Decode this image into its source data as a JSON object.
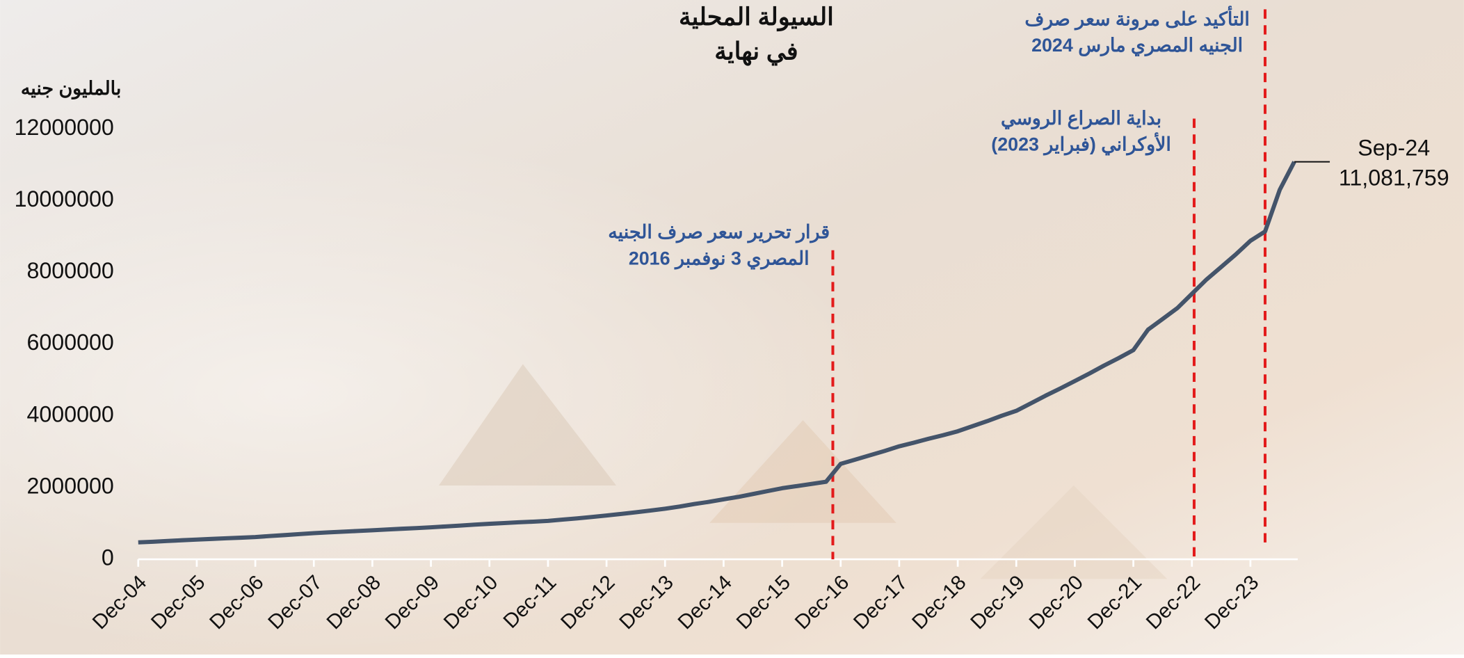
{
  "chart_data": {
    "type": "line",
    "title": [
      "السيولة المحلية",
      "في نهاية"
    ],
    "y_label": "بالمليون جنيه",
    "categories": [
      "Dec-04",
      null,
      null,
      null,
      "Dec-05",
      null,
      null,
      null,
      "Dec-06",
      null,
      null,
      null,
      "Dec-07",
      null,
      null,
      null,
      "Dec-08",
      null,
      null,
      null,
      "Dec-09",
      null,
      null,
      null,
      "Dec-10",
      null,
      null,
      null,
      "Dec-11",
      null,
      null,
      null,
      "Dec-12",
      null,
      null,
      null,
      "Dec-13",
      null,
      null,
      null,
      "Dec-14",
      null,
      null,
      null,
      "Dec-15",
      null,
      null,
      null,
      "Dec-16",
      null,
      null,
      null,
      "Dec-17",
      null,
      null,
      null,
      "Dec-18",
      null,
      null,
      null,
      "Dec-19",
      null,
      null,
      null,
      "Dec-20",
      null,
      null,
      null,
      "Dec-21",
      null,
      null,
      null,
      "Dec-22",
      null,
      null,
      null,
      "Dec-23",
      null,
      null,
      "Sep-24"
    ],
    "values": [
      470000,
      490000,
      510000,
      530000,
      550000,
      567000,
      585000,
      602000,
      620000,
      648000,
      675000,
      703000,
      730000,
      750000,
      770000,
      790000,
      810000,
      830000,
      850000,
      870000,
      890000,
      915000,
      940000,
      965000,
      990000,
      1010000,
      1030000,
      1050000,
      1070000,
      1105000,
      1140000,
      1180000,
      1220000,
      1265000,
      1310000,
      1360000,
      1410000,
      1470000,
      1540000,
      1600000,
      1670000,
      1740000,
      1820000,
      1900000,
      1980000,
      2040000,
      2100000,
      2160000,
      2660000,
      2780000,
      2900000,
      3020000,
      3150000,
      3250000,
      3360000,
      3460000,
      3570000,
      3710000,
      3850000,
      4000000,
      4140000,
      4350000,
      4560000,
      4760000,
      4970000,
      5180000,
      5400000,
      5610000,
      5830000,
      6400000,
      6700000,
      7000000,
      7400000,
      7800000,
      8150000,
      8500000,
      8880000,
      9140000,
      10300000,
      11081759
    ],
    "value_labels": [
      null,
      null,
      null,
      null,
      null,
      null,
      null,
      null,
      null,
      null,
      null,
      null,
      null,
      null,
      null,
      null,
      null,
      null,
      null,
      null,
      null,
      null,
      null,
      null,
      null,
      null,
      null,
      null,
      null,
      null,
      null,
      null,
      null,
      null,
      null,
      null,
      null,
      null,
      null,
      null,
      null,
      null,
      null,
      null,
      null,
      null,
      null,
      null,
      null,
      null,
      null,
      null,
      null,
      null,
      null,
      null,
      null,
      null,
      null,
      null,
      null,
      null,
      null,
      null,
      null,
      null,
      null,
      null,
      null,
      null,
      null,
      null,
      null,
      null,
      null,
      null,
      null,
      null,
      null,
      "11,081,759"
    ],
    "color": "#44546a",
    "ylim": [
      0,
      12000000
    ],
    "yticks": [
      0,
      2000000,
      4000000,
      6000000,
      8000000,
      10000000,
      12000000
    ],
    "grid": false,
    "annotations": [
      {
        "lines": [
          "قرار تحرير سعر صرف الجنيه",
          "المصري 3 نوفمبر 2016"
        ],
        "color": "#2f5597"
      },
      {
        "lines": [
          "بداية الصراع الروسي",
          "الأوكراني (فبراير 2023)"
        ],
        "color": "#2f5597"
      },
      {
        "lines": [
          "التأكيد على مرونة سعر صرف",
          "الجنيه المصري مارس 2024"
        ],
        "color": "#2f5597"
      }
    ],
    "event_line_color": "#e31b1b"
  }
}
